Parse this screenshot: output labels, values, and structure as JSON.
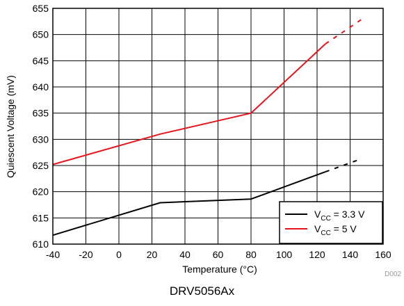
{
  "chart_data": {
    "type": "line",
    "xlabel": "Temperature (°C)",
    "ylabel": "Quiescent Voltage (mV)",
    "xlim": [
      -40,
      160
    ],
    "ylim": [
      610,
      655
    ],
    "xticks": [
      -40,
      -20,
      0,
      20,
      40,
      60,
      80,
      100,
      120,
      140,
      160
    ],
    "yticks": [
      610,
      615,
      620,
      625,
      630,
      635,
      640,
      645,
      650,
      655
    ],
    "grid": true,
    "legend_position": "bottom-right",
    "series": [
      {
        "name": "V_CC = 3.3 V",
        "legend_main": "V",
        "legend_sub": "CC",
        "legend_rest": " = 3.3 V",
        "color": "#000000",
        "x": [
          -40,
          25,
          80,
          125
        ],
        "y": [
          611.7,
          617.9,
          618.6,
          623.8
        ],
        "extrapolated_x": [
          125,
          147
        ],
        "extrapolated_y": [
          623.8,
          626.3
        ]
      },
      {
        "name": "V_CC = 5 V",
        "legend_main": "V",
        "legend_sub": "CC",
        "legend_rest": " = 5 V",
        "color": "#e8141c",
        "x": [
          -40,
          25,
          80,
          125
        ],
        "y": [
          625.2,
          631.0,
          635.0,
          648.2
        ],
        "extrapolated_x": [
          125,
          147
        ],
        "extrapolated_y": [
          648.2,
          652.9
        ]
      }
    ]
  },
  "figure_id": "D002",
  "caption": "DRV5056Ax"
}
